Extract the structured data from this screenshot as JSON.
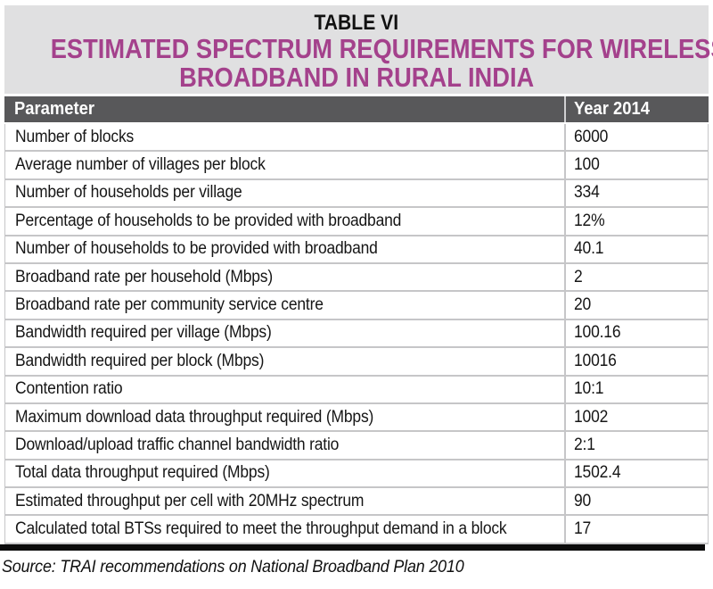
{
  "caption_block": {
    "caption": "TABLE VI",
    "title_line1": "ESTIMATED SPECTRUM REQUIREMENTS FOR WIRELESS",
    "title_line2": "BROADBAND IN RURAL INDIA"
  },
  "table": {
    "columns": [
      "Parameter",
      "Year 2014"
    ],
    "rows": [
      [
        "Number of blocks",
        "6000"
      ],
      [
        "Average number of villages per block",
        "100"
      ],
      [
        "Number of households per village",
        "334"
      ],
      [
        "Percentage of households to be provided with broadband",
        "12%"
      ],
      [
        "Number of households to be provided with broadband",
        "40.1"
      ],
      [
        "Broadband rate per household (Mbps)",
        "2"
      ],
      [
        "Broadband rate per community service centre",
        "20"
      ],
      [
        "Bandwidth required per village (Mbps)",
        "100.16"
      ],
      [
        "Bandwidth required per block (Mbps)",
        "10016"
      ],
      [
        "Contention ratio",
        "10:1"
      ],
      [
        "Maximum download data throughput required (Mbps)",
        "1002"
      ],
      [
        "Download/upload traffic channel bandwidth ratio",
        "2:1"
      ],
      [
        "Total data throughput required (Mbps)",
        "1502.4"
      ],
      [
        "Estimated throughput per cell with 20MHz spectrum",
        "90"
      ],
      [
        "Calculated total BTSs required to meet the throughput demand in a block",
        "17"
      ]
    ]
  },
  "source": "Source: TRAI recommendations on National Broadband Plan 2010",
  "colors": {
    "title_accent": "#a4418c",
    "caption_block_bg": "#e0e0e1",
    "header_row_bg": "#58585a",
    "row_border": "#c6c6c8",
    "bottom_rule": "#0b0b0b"
  }
}
